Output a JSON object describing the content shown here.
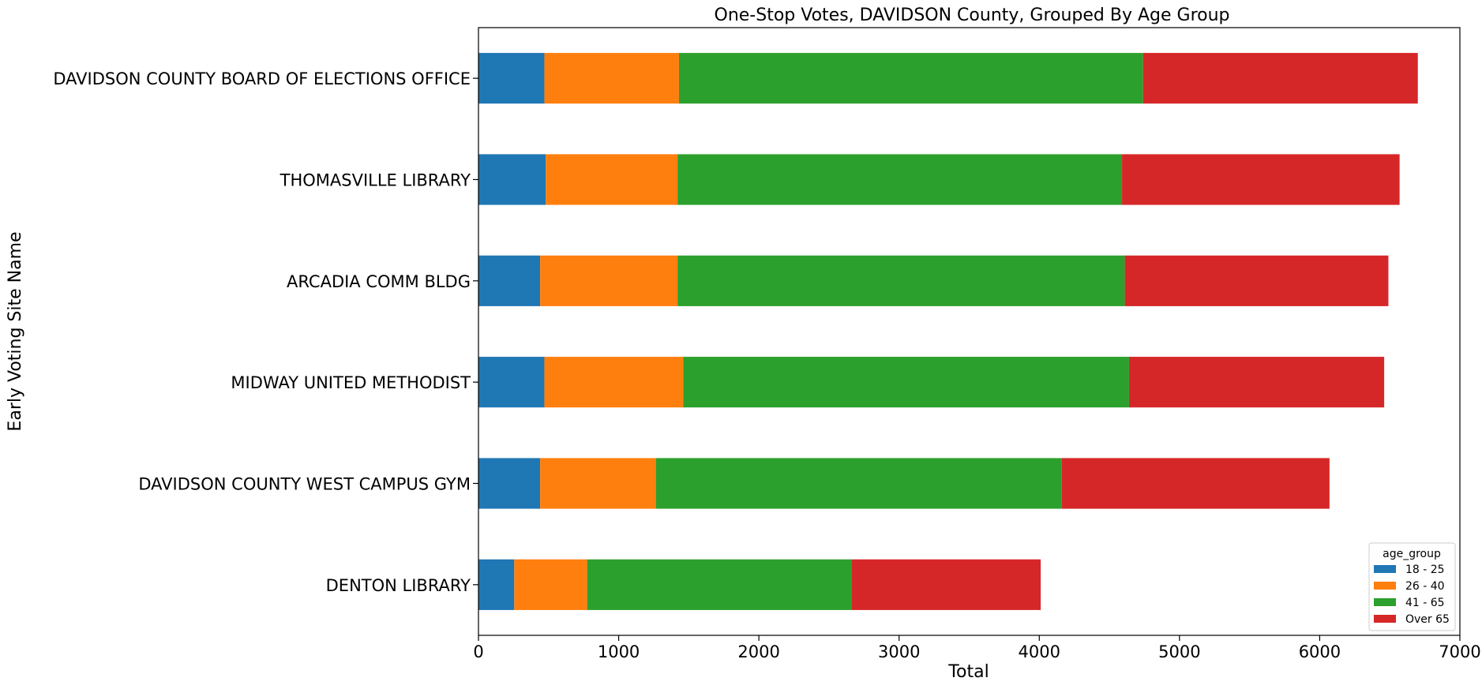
{
  "chart_data": {
    "type": "bar",
    "orientation": "horizontal",
    "stacked": true,
    "title": "One-Stop Votes, DAVIDSON County, Grouped By Age Group",
    "xlabel": "Total",
    "ylabel": "Early Voting Site Name",
    "xlim": [
      0,
      7000
    ],
    "xticks": [
      0,
      1000,
      2000,
      3000,
      4000,
      5000,
      6000,
      7000
    ],
    "grid": false,
    "categories": [
      "DAVIDSON COUNTY BOARD OF ELECTIONS OFFICE",
      "THOMASVILLE LIBRARY",
      "ARCADIA COMM BLDG",
      "MIDWAY UNITED METHODIST",
      "DAVIDSON COUNTY WEST CAMPUS GYM",
      "DENTON LIBRARY"
    ],
    "series": [
      {
        "name": "18 - 25",
        "color": "#1f77b4",
        "values": [
          470,
          480,
          440,
          470,
          440,
          255
        ]
      },
      {
        "name": "26 - 40",
        "color": "#ff7f0e",
        "values": [
          960,
          940,
          980,
          990,
          825,
          520
        ]
      },
      {
        "name": "41 - 65",
        "color": "#2ca02c",
        "values": [
          3310,
          3170,
          3190,
          3180,
          2895,
          1885
        ]
      },
      {
        "name": "Over 65",
        "color": "#d62728",
        "values": [
          1960,
          1980,
          1880,
          1820,
          1910,
          1350
        ]
      }
    ],
    "legend": {
      "title": "age_group",
      "position": "lower-right"
    }
  }
}
